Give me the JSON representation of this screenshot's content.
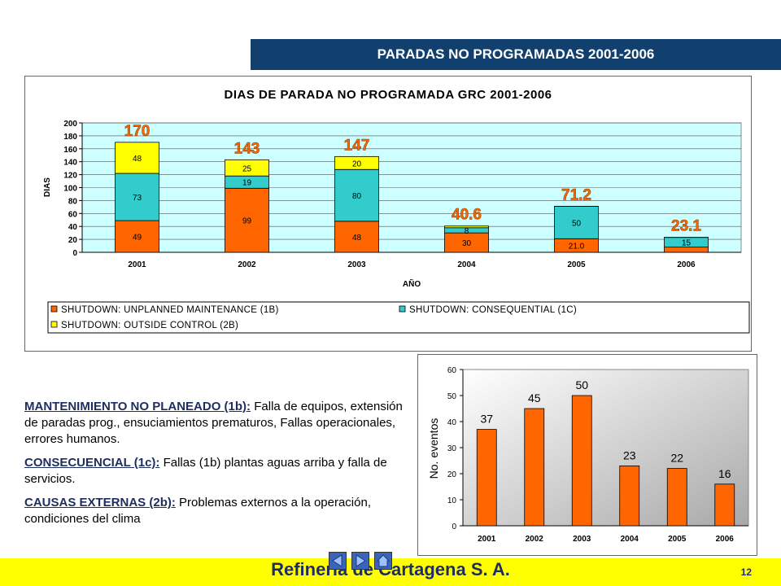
{
  "banner": {
    "title": "PARADAS NO PROGRAMADAS 2001-2006"
  },
  "chart_data": [
    {
      "type": "bar",
      "stacked": true,
      "title": "DIAS DE PARADA NO PROGRAMADA GRC 2001-2006",
      "xlabel": "AÑO",
      "ylabel": "DIAS",
      "ylim": [
        0,
        200
      ],
      "yticks": [
        0,
        20,
        40,
        60,
        80,
        100,
        120,
        140,
        160,
        180,
        200
      ],
      "categories": [
        "2001",
        "2002",
        "2003",
        "2004",
        "2005",
        "2006"
      ],
      "series": [
        {
          "name": "SHUTDOWN: UNPLANNED MAINTENANCE (1B)",
          "color": "#ff6600",
          "values": [
            49,
            99,
            48,
            30,
            21.0,
            8
          ],
          "labels": [
            "49",
            "99",
            "48",
            "30",
            "21.0",
            ""
          ]
        },
        {
          "name": "SHUTDOWN: CONSEQUENTIAL (1C)",
          "color": "#33cccc",
          "values": [
            73,
            19,
            80,
            8,
            50,
            15
          ],
          "labels": [
            "73",
            "19",
            "80",
            "8",
            "50",
            "15"
          ]
        },
        {
          "name": "SHUTDOWN: OUTSIDE CONTROL (2B)",
          "color": "#ffff00",
          "values": [
            48,
            25,
            20,
            2.6,
            0.2,
            0.1
          ],
          "labels": [
            "48",
            "25",
            "20",
            "",
            "",
            ""
          ]
        }
      ],
      "totals": [
        "170",
        "143",
        "147",
        "40.6",
        "71.2",
        "23.1"
      ],
      "grid": true,
      "legend": "bottom",
      "plot_background": "#ccffff",
      "total_label_color": "#ff6600"
    },
    {
      "type": "bar",
      "ylabel": "No. eventos",
      "ylim": [
        0,
        60
      ],
      "yticks": [
        0,
        10,
        20,
        30,
        40,
        50,
        60
      ],
      "categories": [
        "2001",
        "2002",
        "2003",
        "2004",
        "2005",
        "2006"
      ],
      "values": [
        37,
        45,
        50,
        23,
        22,
        16
      ],
      "color": "#ff6600",
      "plot_background": "gradient-gray",
      "legend": "none"
    }
  ],
  "definitions": [
    {
      "term": "MANTENIMIENTO NO PLANEADO (1b):",
      "text": " Falla de equipos, extensión de paradas prog., ensuciamientos prematuros, Fallas operacionales, errores humanos."
    },
    {
      "term": "CONSECUENCIAL (1c):",
      "text": " Fallas (1b) plantas aguas arriba y falla de servicios."
    },
    {
      "term": "CAUSAS EXTERNAS (2b):",
      "text": " Problemas externos a la operación, condiciones del clima"
    }
  ],
  "footer": {
    "title": "Refinería de Cartagena S. A.",
    "page": "12"
  }
}
